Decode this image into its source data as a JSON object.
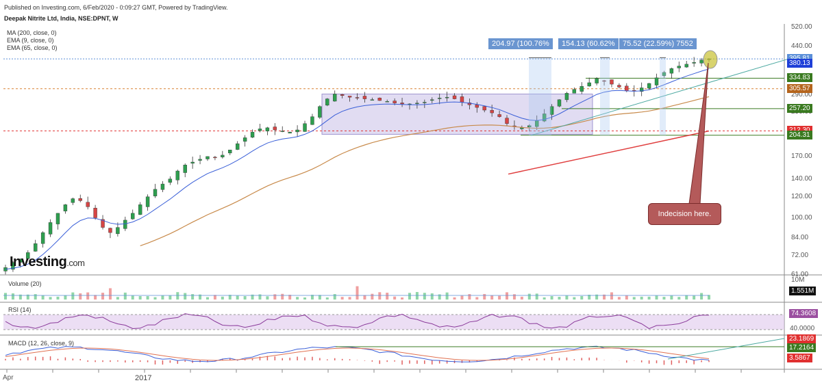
{
  "header": {
    "publish": "Published on Investing.com, 6/Feb/2020 - 0:09:27 GMT, Powered by TradingView.",
    "symbol": "Deepak Nitrite Ltd, India, NSE:DPNT, W"
  },
  "indicators": [
    "MA (200, close, 0)",
    "EMA (9, close, 0)",
    "EMA (65, close, 0)"
  ],
  "logo": {
    "main": "Investing",
    "suffix": ".com"
  },
  "price_axis_ticks": [
    "520.00",
    "440.00",
    "340.00",
    "290.00",
    "250.00",
    "210.00",
    "170.00",
    "140.00",
    "120.00",
    "100.00",
    "84.00",
    "72.00",
    "61.00"
  ],
  "price_labels": [
    {
      "text": "395.81",
      "color": "#5b8fd8"
    },
    {
      "text": "380.13",
      "color": "#1f3fd8"
    },
    {
      "text": "334.83",
      "color": "#3a7a20"
    },
    {
      "text": "305.57",
      "color": "#b5651d"
    },
    {
      "text": "257.20",
      "color": "#3a7a20"
    },
    {
      "text": "212.30",
      "color": "#e03030"
    },
    {
      "text": "204.31",
      "color": "#3a7a20"
    }
  ],
  "annotations": [
    "204.97 (100.76%",
    "154.13 (60.62%",
    "75.52 (22.59%) 7552"
  ],
  "callout": "Indecision here.",
  "panes": {
    "volume": {
      "title": "Volume (20)",
      "ticks": [
        "10M"
      ],
      "label": "1.551M"
    },
    "rsi": {
      "title": "RSI (14)",
      "ticks": [
        "40.0000"
      ],
      "label": "74.3608"
    },
    "macd": {
      "title": "MACD (12, 26, close, 9)",
      "labels": [
        {
          "text": "23.1869",
          "color": "#e03030"
        },
        {
          "text": "17.2164",
          "color": "#3a7a20"
        },
        {
          "text": "3.5867",
          "color": "#e03030"
        }
      ]
    }
  },
  "x_axis": [
    "Apr",
    "2017"
  ],
  "colors": {
    "up": "#2e9e4f",
    "down": "#d64545",
    "ma200": "#e04040",
    "ema9": "#3a5fd8",
    "ema65": "#c88a4a",
    "box": "#c8c0e8"
  },
  "chart_data": {
    "type": "candlestick",
    "title": "Deepak Nitrite Ltd, India, NSE:DPNT, W",
    "scale": "log",
    "ylim": [
      61,
      520
    ],
    "levels": [
      395.81,
      380.13,
      334.83,
      305.57,
      257.2,
      212.3,
      204.31
    ],
    "close_path": [
      65,
      68,
      70,
      74,
      80,
      88,
      96,
      104,
      112,
      118,
      116,
      110,
      100,
      92,
      88,
      92,
      98,
      104,
      112,
      120,
      128,
      134,
      140,
      150,
      158,
      162,
      166,
      170,
      168,
      172,
      180,
      190,
      200,
      210,
      216,
      218,
      214,
      212,
      210,
      214,
      226,
      240,
      262,
      280,
      292,
      288,
      284,
      282,
      280,
      278,
      276,
      274,
      270,
      268,
      268,
      270,
      272,
      278,
      282,
      284,
      280,
      272,
      266,
      260,
      254,
      248,
      240,
      226,
      220,
      218,
      222,
      232,
      246,
      262,
      278,
      294,
      304,
      312,
      322,
      334,
      326,
      318,
      310,
      300,
      300,
      308,
      320,
      336,
      352,
      364,
      372,
      378,
      384,
      392,
      396
    ]
  }
}
